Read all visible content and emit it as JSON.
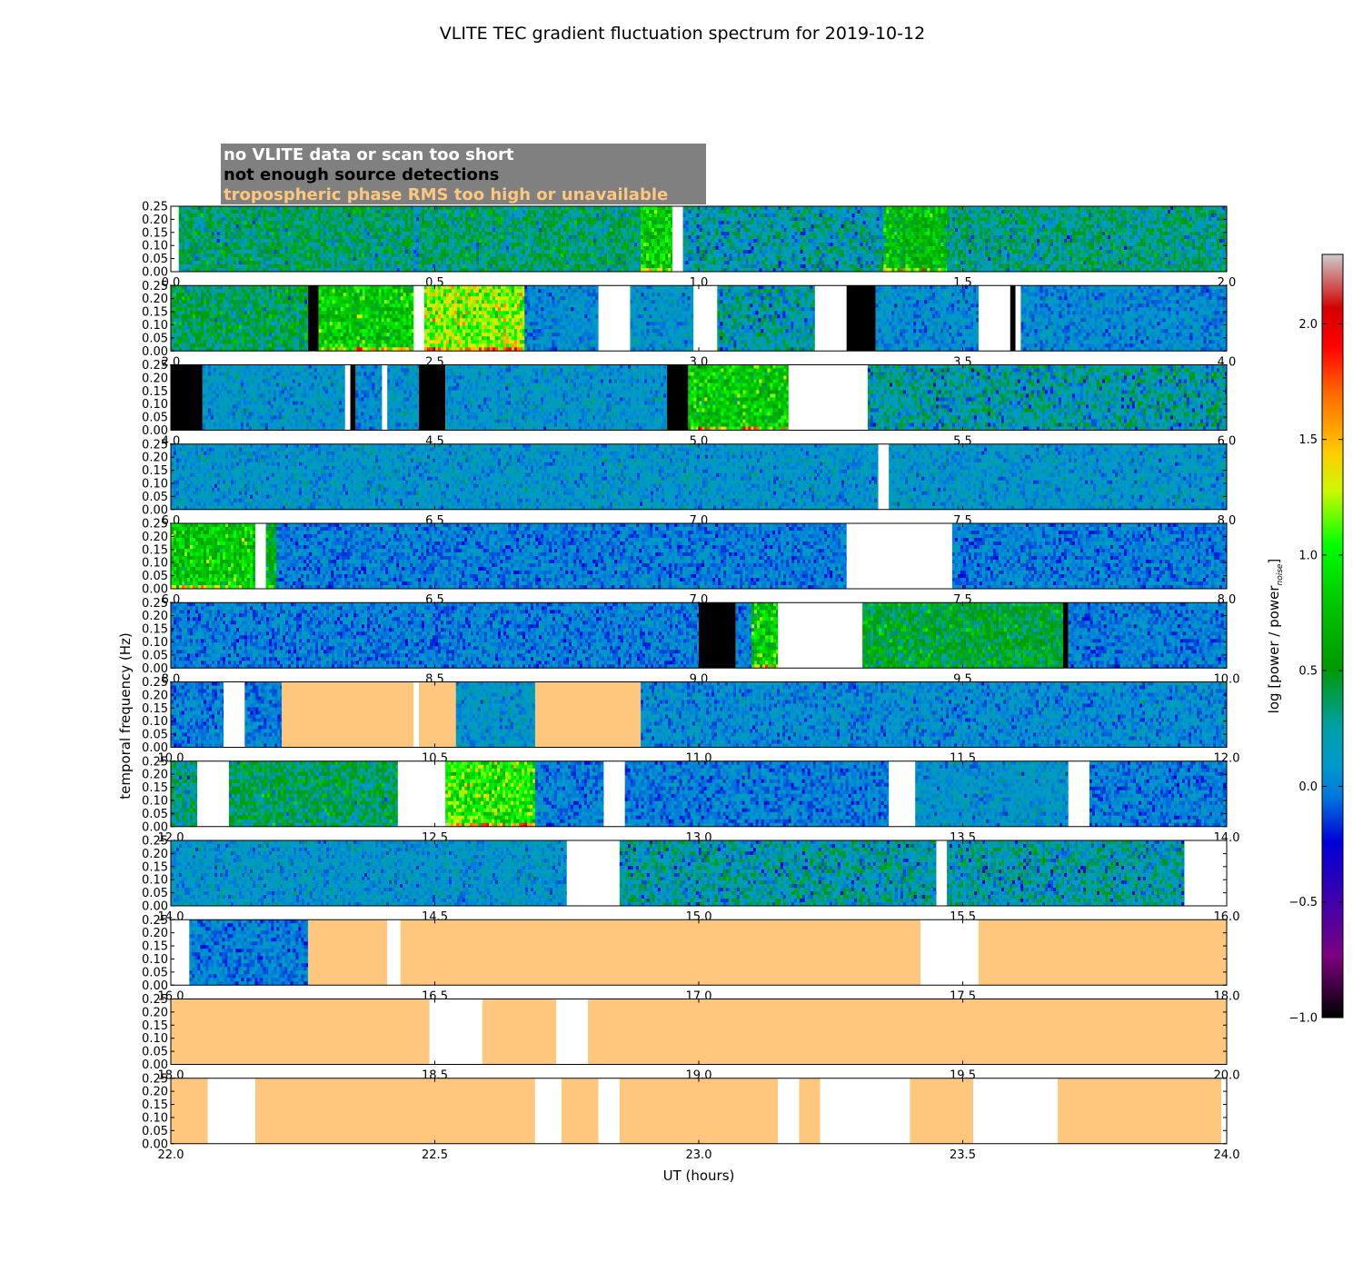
{
  "chart_data": {
    "type": "heatmap",
    "title": "VLITE TEC gradient fluctuation spectrum for 2019-10-12",
    "xlabel": "UT (hours)",
    "ylabel": "temporal frequency (Hz)",
    "ylim": [
      0,
      0.25
    ],
    "y_ticks": [
      "0.00",
      "0.05",
      "0.10",
      "0.15",
      "0.20",
      "0.25"
    ],
    "colorbar": {
      "label": "log [power / power",
      "label_sub": "noise",
      "label_end": "]",
      "range": [
        -1.0,
        2.3
      ],
      "ticks": [
        "−1.0",
        "−0.5",
        "0.0",
        "0.5",
        "1.0",
        "1.5",
        "2.0"
      ],
      "tick_values": [
        -1.0,
        -0.5,
        0.0,
        0.5,
        1.0,
        1.5,
        2.0
      ]
    },
    "legend": {
      "placement": "top-left",
      "entries": [
        {
          "label": "no VLITE data or scan too short",
          "text_color": "#ffffff",
          "fill_color": "#ffffff"
        },
        {
          "label": "not enough source detections",
          "text_color": "#000000",
          "fill_color": "#000000"
        },
        {
          "label": "tropospheric phase RMS too high or unavailable",
          "text_color": "#ffc77e",
          "fill_color": "#ffc77e"
        }
      ]
    },
    "panels": [
      {
        "xlim": [
          0.0,
          2.0
        ],
        "x_ticks": [
          "0.0",
          "0.5",
          "1.0",
          "1.5",
          "2.0"
        ],
        "segments": [
          {
            "start": 0.0,
            "end": 0.015,
            "state": "no_data"
          },
          {
            "start": 0.015,
            "end": 0.46,
            "state": "spectrum",
            "level": 0.35
          },
          {
            "start": 0.46,
            "end": 0.47,
            "state": "spectrum",
            "level": 0.05
          },
          {
            "start": 0.47,
            "end": 0.89,
            "state": "spectrum",
            "level": 0.35
          },
          {
            "start": 0.89,
            "end": 0.95,
            "state": "spectrum",
            "level": 0.8
          },
          {
            "start": 0.95,
            "end": 0.97,
            "state": "no_data"
          },
          {
            "start": 0.97,
            "end": 1.35,
            "state": "spectrum",
            "level": 0.2
          },
          {
            "start": 1.35,
            "end": 1.47,
            "state": "spectrum",
            "level": 0.7
          },
          {
            "start": 1.47,
            "end": 2.0,
            "state": "spectrum",
            "level": 0.3
          }
        ]
      },
      {
        "xlim": [
          2.0,
          4.0
        ],
        "x_ticks": [
          "2.0",
          "2.5",
          "3.0",
          "3.5",
          "4.0"
        ],
        "segments": [
          {
            "start": 2.0,
            "end": 2.26,
            "state": "spectrum",
            "level": 0.4
          },
          {
            "start": 2.26,
            "end": 2.28,
            "state": "low_detections"
          },
          {
            "start": 2.28,
            "end": 2.46,
            "state": "spectrum",
            "level": 0.8
          },
          {
            "start": 2.46,
            "end": 2.48,
            "state": "no_data"
          },
          {
            "start": 2.48,
            "end": 2.67,
            "state": "spectrum",
            "level": 1.2
          },
          {
            "start": 2.67,
            "end": 2.81,
            "state": "spectrum",
            "level": 0.05
          },
          {
            "start": 2.81,
            "end": 2.87,
            "state": "no_data"
          },
          {
            "start": 2.87,
            "end": 2.99,
            "state": "spectrum",
            "level": 0.1
          },
          {
            "start": 2.99,
            "end": 3.035,
            "state": "no_data"
          },
          {
            "start": 3.035,
            "end": 3.22,
            "state": "spectrum",
            "level": 0.2
          },
          {
            "start": 3.22,
            "end": 3.28,
            "state": "no_data"
          },
          {
            "start": 3.28,
            "end": 3.335,
            "state": "low_detections"
          },
          {
            "start": 3.335,
            "end": 3.36,
            "state": "spectrum",
            "level": 0.1
          },
          {
            "start": 3.36,
            "end": 3.53,
            "state": "spectrum",
            "level": 0.05
          },
          {
            "start": 3.53,
            "end": 3.59,
            "state": "no_data"
          },
          {
            "start": 3.59,
            "end": 3.6,
            "state": "low_detections"
          },
          {
            "start": 3.6,
            "end": 3.61,
            "state": "no_data"
          },
          {
            "start": 3.61,
            "end": 4.0,
            "state": "spectrum",
            "level": 0.05
          }
        ]
      },
      {
        "xlim": [
          4.0,
          6.0
        ],
        "x_ticks": [
          "4.0",
          "4.5",
          "5.0",
          "5.5",
          "6.0"
        ],
        "segments": [
          {
            "start": 4.0,
            "end": 4.06,
            "state": "low_detections"
          },
          {
            "start": 4.06,
            "end": 4.33,
            "state": "spectrum",
            "level": 0.1
          },
          {
            "start": 4.33,
            "end": 4.34,
            "state": "no_data"
          },
          {
            "start": 4.34,
            "end": 4.35,
            "state": "low_detections"
          },
          {
            "start": 4.35,
            "end": 4.4,
            "state": "spectrum",
            "level": 0.05
          },
          {
            "start": 4.4,
            "end": 4.41,
            "state": "no_data"
          },
          {
            "start": 4.41,
            "end": 4.47,
            "state": "spectrum",
            "level": 0.1
          },
          {
            "start": 4.47,
            "end": 4.52,
            "state": "low_detections"
          },
          {
            "start": 4.52,
            "end": 4.94,
            "state": "spectrum",
            "level": 0.1
          },
          {
            "start": 4.94,
            "end": 4.98,
            "state": "low_detections"
          },
          {
            "start": 4.98,
            "end": 5.17,
            "state": "spectrum",
            "level": 0.8
          },
          {
            "start": 5.17,
            "end": 5.32,
            "state": "no_data"
          },
          {
            "start": 5.32,
            "end": 6.0,
            "state": "spectrum",
            "level": 0.2
          }
        ]
      },
      {
        "xlim": [
          6.0,
          8.0
        ],
        "x_ticks": [
          "6.0",
          "6.5",
          "7.0",
          "7.5",
          "8.0"
        ],
        "segments": [
          {
            "start": 6.0,
            "end": 7.34,
            "state": "spectrum",
            "level": 0.1
          },
          {
            "start": 7.34,
            "end": 7.36,
            "state": "no_data"
          },
          {
            "start": 7.36,
            "end": 8.0,
            "state": "spectrum",
            "level": 0.1
          }
        ]
      },
      {
        "xlim": [
          6.0,
          8.0
        ],
        "x_ticks": [
          "6.0",
          "6.5",
          "7.0",
          "7.5",
          "8.0"
        ],
        "segments": [
          {
            "start": 6.0,
            "end": 6.16,
            "state": "spectrum",
            "level": 0.8
          },
          {
            "start": 6.16,
            "end": 6.18,
            "state": "no_data"
          },
          {
            "start": 6.18,
            "end": 6.2,
            "state": "spectrum",
            "level": 0.6
          },
          {
            "start": 6.2,
            "end": 7.28,
            "state": "spectrum",
            "level": 0.0
          },
          {
            "start": 7.28,
            "end": 7.48,
            "state": "no_data"
          },
          {
            "start": 7.48,
            "end": 8.0,
            "state": "spectrum",
            "level": 0.0
          }
        ]
      },
      {
        "xlim": [
          8.0,
          10.0
        ],
        "x_ticks": [
          "8.0",
          "8.5",
          "9.0",
          "9.5",
          "10.0"
        ],
        "segments": [
          {
            "start": 8.0,
            "end": 9.0,
            "state": "spectrum",
            "level": 0.0
          },
          {
            "start": 9.0,
            "end": 9.07,
            "state": "low_detections"
          },
          {
            "start": 9.07,
            "end": 9.1,
            "state": "spectrum",
            "level": 0.0
          },
          {
            "start": 9.1,
            "end": 9.15,
            "state": "spectrum",
            "level": 0.8
          },
          {
            "start": 9.15,
            "end": 9.31,
            "state": "no_data"
          },
          {
            "start": 9.31,
            "end": 9.69,
            "state": "spectrum",
            "level": 0.5
          },
          {
            "start": 9.69,
            "end": 9.7,
            "state": "low_detections"
          },
          {
            "start": 9.7,
            "end": 10.0,
            "state": "spectrum",
            "level": 0.0
          }
        ]
      },
      {
        "xlim": [
          10.0,
          12.0
        ],
        "x_ticks": [
          "10.0",
          "10.5",
          "11.0",
          "11.5",
          "12.0"
        ],
        "segments": [
          {
            "start": 10.0,
            "end": 10.1,
            "state": "spectrum",
            "level": 0.0
          },
          {
            "start": 10.1,
            "end": 10.14,
            "state": "no_data"
          },
          {
            "start": 10.14,
            "end": 10.21,
            "state": "spectrum",
            "level": 0.0
          },
          {
            "start": 10.21,
            "end": 10.46,
            "state": "tropo_high"
          },
          {
            "start": 10.46,
            "end": 10.47,
            "state": "no_data"
          },
          {
            "start": 10.47,
            "end": 10.54,
            "state": "tropo_high"
          },
          {
            "start": 10.54,
            "end": 10.69,
            "state": "spectrum",
            "level": 0.1
          },
          {
            "start": 10.69,
            "end": 10.89,
            "state": "tropo_high"
          },
          {
            "start": 10.89,
            "end": 12.0,
            "state": "spectrum",
            "level": 0.05
          }
        ]
      },
      {
        "xlim": [
          12.0,
          14.0
        ],
        "x_ticks": [
          "12.0",
          "12.5",
          "13.0",
          "13.5",
          "14.0"
        ],
        "segments": [
          {
            "start": 12.0,
            "end": 12.05,
            "state": "spectrum",
            "level": 0.3
          },
          {
            "start": 12.05,
            "end": 12.11,
            "state": "no_data"
          },
          {
            "start": 12.11,
            "end": 12.43,
            "state": "spectrum",
            "level": 0.4
          },
          {
            "start": 12.43,
            "end": 12.52,
            "state": "no_data"
          },
          {
            "start": 12.52,
            "end": 12.69,
            "state": "spectrum",
            "level": 1.0
          },
          {
            "start": 12.69,
            "end": 12.82,
            "state": "spectrum",
            "level": 0.0
          },
          {
            "start": 12.82,
            "end": 12.86,
            "state": "no_data"
          },
          {
            "start": 12.86,
            "end": 13.36,
            "state": "spectrum",
            "level": 0.0
          },
          {
            "start": 13.36,
            "end": 13.41,
            "state": "no_data"
          },
          {
            "start": 13.41,
            "end": 13.7,
            "state": "spectrum",
            "level": 0.1
          },
          {
            "start": 13.7,
            "end": 13.74,
            "state": "no_data"
          },
          {
            "start": 13.74,
            "end": 14.0,
            "state": "spectrum",
            "level": 0.0
          }
        ]
      },
      {
        "xlim": [
          14.0,
          16.0
        ],
        "x_ticks": [
          "14.0",
          "14.5",
          "15.0",
          "15.5",
          "16.0"
        ],
        "segments": [
          {
            "start": 14.0,
            "end": 14.75,
            "state": "spectrum",
            "level": 0.1
          },
          {
            "start": 14.75,
            "end": 14.85,
            "state": "no_data"
          },
          {
            "start": 14.85,
            "end": 15.45,
            "state": "spectrum",
            "level": 0.2
          },
          {
            "start": 15.45,
            "end": 15.47,
            "state": "no_data"
          },
          {
            "start": 15.47,
            "end": 15.92,
            "state": "spectrum",
            "level": 0.2
          },
          {
            "start": 15.92,
            "end": 16.0,
            "state": "no_data"
          }
        ]
      },
      {
        "xlim": [
          16.0,
          18.0
        ],
        "x_ticks": [
          "16.0",
          "16.5",
          "17.0",
          "17.5",
          "18.0"
        ],
        "segments": [
          {
            "start": 16.0,
            "end": 16.035,
            "state": "no_data"
          },
          {
            "start": 16.035,
            "end": 16.26,
            "state": "spectrum",
            "level": 0.0
          },
          {
            "start": 16.26,
            "end": 16.41,
            "state": "tropo_high"
          },
          {
            "start": 16.41,
            "end": 16.435,
            "state": "no_data"
          },
          {
            "start": 16.435,
            "end": 17.42,
            "state": "tropo_high"
          },
          {
            "start": 17.42,
            "end": 17.53,
            "state": "no_data"
          },
          {
            "start": 17.53,
            "end": 18.0,
            "state": "tropo_high"
          }
        ]
      },
      {
        "xlim": [
          18.0,
          20.0
        ],
        "x_ticks": [
          "18.0",
          "18.5",
          "19.0",
          "19.5",
          "20.0"
        ],
        "segments": [
          {
            "start": 18.0,
            "end": 18.49,
            "state": "tropo_high"
          },
          {
            "start": 18.49,
            "end": 18.59,
            "state": "no_data"
          },
          {
            "start": 18.59,
            "end": 18.73,
            "state": "tropo_high"
          },
          {
            "start": 18.73,
            "end": 18.79,
            "state": "no_data"
          },
          {
            "start": 18.79,
            "end": 20.0,
            "state": "tropo_high"
          }
        ]
      },
      {
        "xlim": [
          22.0,
          24.0
        ],
        "x_ticks": [
          "22.0",
          "22.5",
          "23.0",
          "23.5",
          "24.0"
        ],
        "segments": [
          {
            "start": 22.0,
            "end": 22.07,
            "state": "tropo_high"
          },
          {
            "start": 22.07,
            "end": 22.16,
            "state": "no_data"
          },
          {
            "start": 22.16,
            "end": 22.69,
            "state": "tropo_high"
          },
          {
            "start": 22.69,
            "end": 22.74,
            "state": "no_data"
          },
          {
            "start": 22.74,
            "end": 22.81,
            "state": "tropo_high"
          },
          {
            "start": 22.81,
            "end": 22.85,
            "state": "no_data"
          },
          {
            "start": 22.85,
            "end": 23.15,
            "state": "tropo_high"
          },
          {
            "start": 23.15,
            "end": 23.19,
            "state": "no_data"
          },
          {
            "start": 23.19,
            "end": 23.23,
            "state": "tropo_high"
          },
          {
            "start": 23.23,
            "end": 23.4,
            "state": "no_data"
          },
          {
            "start": 23.4,
            "end": 23.52,
            "state": "tropo_high"
          },
          {
            "start": 23.52,
            "end": 23.68,
            "state": "no_data"
          },
          {
            "start": 23.68,
            "end": 23.99,
            "state": "tropo_high"
          },
          {
            "start": 23.99,
            "end": 24.0,
            "state": "no_data"
          }
        ]
      }
    ]
  }
}
